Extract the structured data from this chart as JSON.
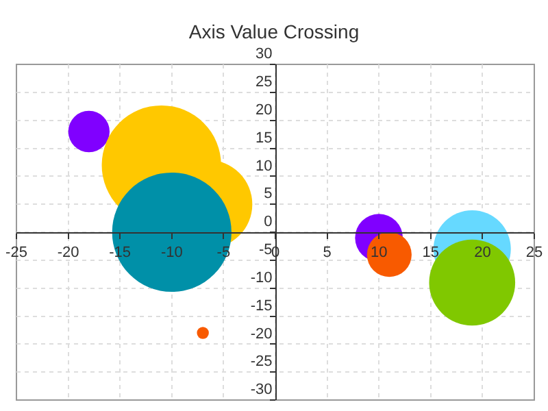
{
  "chart_data": {
    "type": "bubble",
    "title": "Axis Value Crossing",
    "x": [
      -18,
      -11,
      -6.5,
      -10,
      10,
      11,
      19,
      19,
      -7
    ],
    "values": [
      18,
      12,
      5,
      0,
      -1,
      -4,
      -3,
      -9,
      -18
    ],
    "sizes": [
      0.12,
      1,
      0.55,
      1,
      0.16,
      0.14,
      0.42,
      0.52,
      0.01
    ],
    "colors": [
      "#8000ff",
      "#ffc800",
      "#ffc800",
      "#0090a8",
      "#8000ff",
      "#f85a00",
      "#66d9ff",
      "#80c800",
      "#f85a00"
    ],
    "xlim": [
      -25,
      25
    ],
    "xticks": [
      -25,
      -20,
      -15,
      -10,
      -5,
      0,
      5,
      10,
      15,
      20,
      25
    ],
    "ylim": [
      -30,
      30
    ],
    "yticks": [
      -30,
      -25,
      -20,
      -15,
      -10,
      -5,
      0,
      5,
      10,
      15,
      20,
      25,
      30
    ],
    "grid": true
  }
}
